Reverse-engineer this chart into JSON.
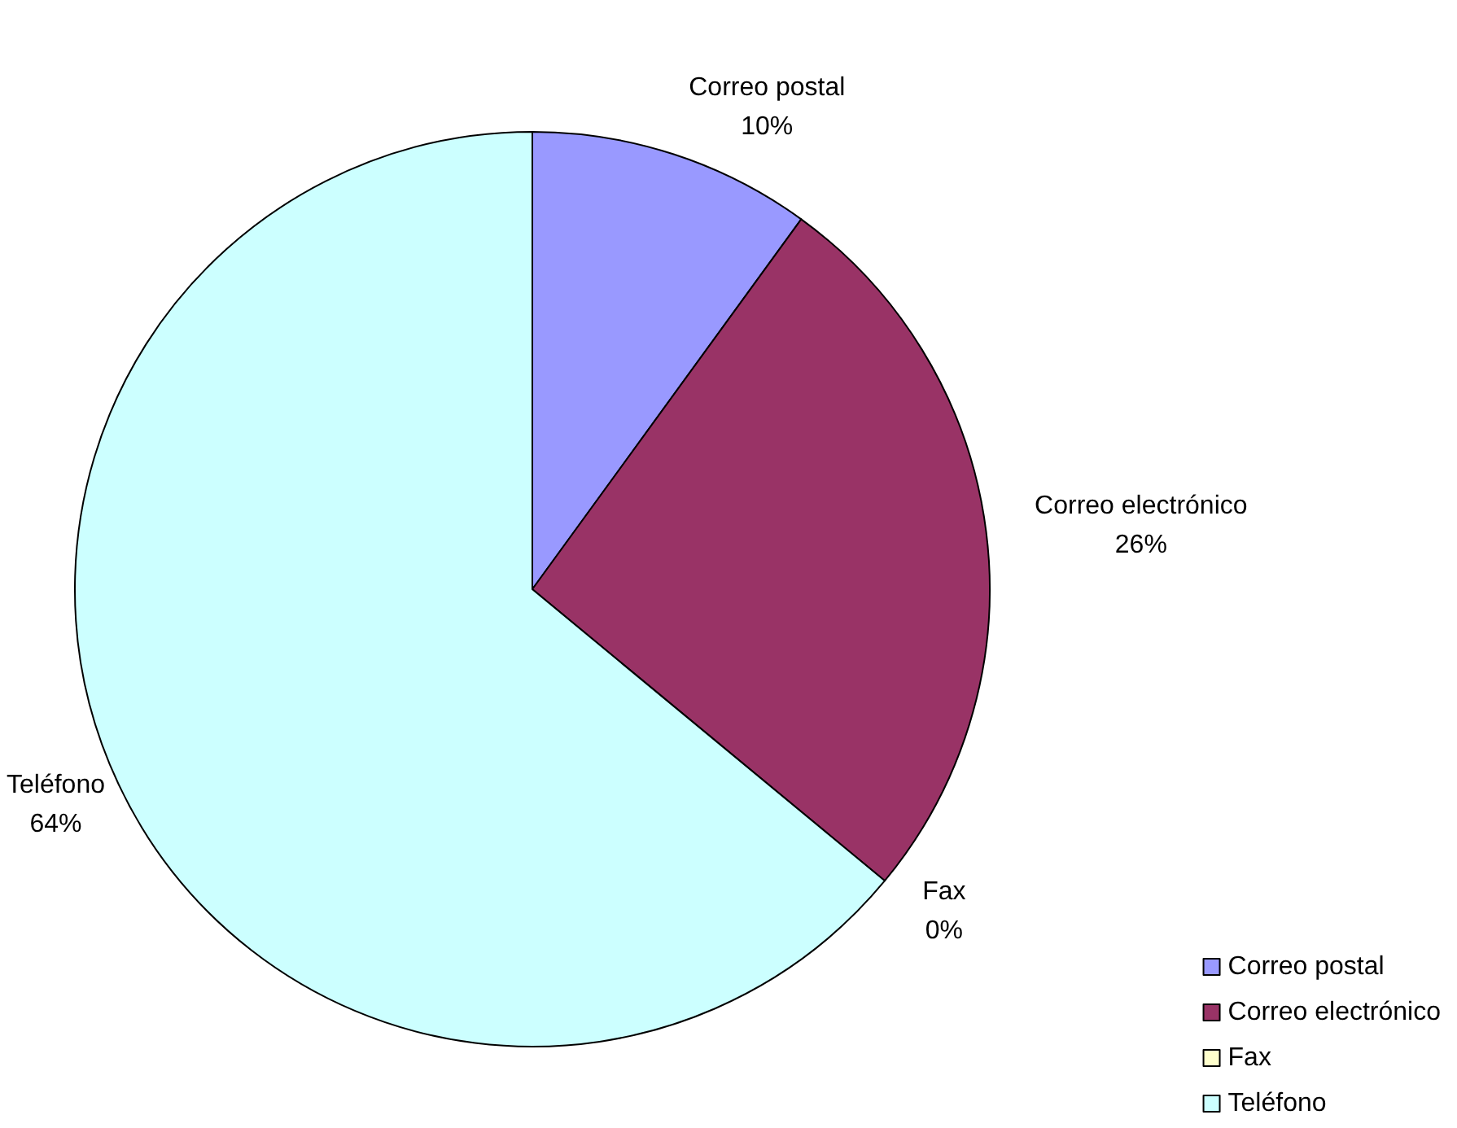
{
  "chart_data": {
    "type": "pie",
    "categories": [
      "Correo postal",
      "Correo electrónico",
      "Fax",
      "Teléfono"
    ],
    "values": [
      10,
      26,
      0,
      64
    ],
    "value_labels": [
      "10%",
      "26%",
      "0%",
      "64%"
    ],
    "colors": [
      "#9999ff",
      "#993366",
      "#ffffcc",
      "#ccffff"
    ],
    "legend": "bottom right"
  }
}
